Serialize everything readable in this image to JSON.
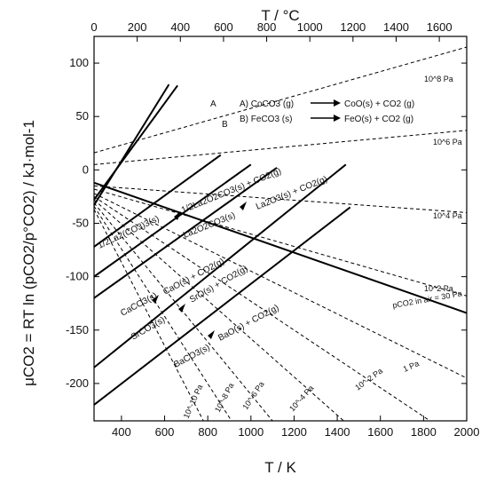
{
  "chart_data": {
    "type": "line",
    "xlabel": "T / K",
    "x2label": "T / °C",
    "ylabel": "μCO2 = RT ln (pCO2/p°CO2) / kJ·mol-1",
    "xlim": [
      273,
      2000
    ],
    "x2lim": [
      0,
      1727
    ],
    "ylim": [
      -235,
      125
    ],
    "xticks": [
      400,
      600,
      800,
      1000,
      1200,
      1400,
      1600,
      1800,
      2000
    ],
    "x2ticks": [
      0,
      200,
      400,
      600,
      800,
      1000,
      1200,
      1400,
      1600
    ],
    "yticks": [
      100,
      50,
      0,
      -50,
      -100,
      -150,
      -200
    ],
    "reactions": [
      {
        "name": "A",
        "label": "A",
        "x": [
          273,
          620
        ],
        "y": [
          -33,
          80
        ]
      },
      {
        "name": "B",
        "label": "B",
        "x": [
          273,
          660
        ],
        "y": [
          -28,
          79
        ]
      },
      {
        "name": "La2(CO3)3",
        "x": [
          273,
          860
        ],
        "y": [
          -72,
          14
        ]
      },
      {
        "name": "La2O2CO3",
        "x": [
          273,
          1000
        ],
        "y": [
          -100,
          5
        ]
      },
      {
        "name": "CaCO3",
        "x": [
          273,
          1120
        ],
        "y": [
          -120,
          2
        ]
      },
      {
        "name": "SrCO3",
        "x": [
          273,
          1440
        ],
        "y": [
          -185,
          5
        ]
      },
      {
        "name": "BaCO3",
        "x": [
          273,
          1460
        ],
        "y": [
          -220,
          -35
        ]
      }
    ],
    "isobars": [
      {
        "name": "10^8 Pa",
        "x": [
          273,
          2000
        ],
        "y": [
          16,
          115
        ]
      },
      {
        "name": "10^6 Pa",
        "x": [
          273,
          2000
        ],
        "y": [
          5,
          37
        ]
      },
      {
        "name": "10^4 Pa",
        "x": [
          273,
          2000
        ],
        "y": [
          -15,
          -40
        ]
      },
      {
        "name": "10^2 Pa",
        "x": [
          273,
          2000
        ],
        "y": [
          -18,
          -118
        ]
      },
      {
        "name": "1 Pa",
        "x": [
          273,
          2000
        ],
        "y": [
          -22,
          -195
        ]
      },
      {
        "name": "10^-2 Pa",
        "x": [
          273,
          1830
        ],
        "y": [
          -25,
          -235
        ]
      },
      {
        "name": "10^-4 Pa",
        "x": [
          273,
          1430
        ],
        "y": [
          -28,
          -235
        ]
      },
      {
        "name": "10^-6 Pa",
        "x": [
          273,
          1100
        ],
        "y": [
          -31,
          -235
        ]
      },
      {
        "name": "10^-8 Pa",
        "x": [
          273,
          910
        ],
        "y": [
          -34,
          -235
        ]
      },
      {
        "name": "10^-10 Pa",
        "x": [
          273,
          780
        ],
        "y": [
          -37,
          -235
        ]
      }
    ],
    "air_line": {
      "name": "pCO2 in air = 30 Pa",
      "x": [
        273,
        2000
      ],
      "y": [
        -12,
        -134
      ]
    },
    "annotations": {
      "A": "A",
      "B": "B",
      "rxnA": "A) CoCO3 (g)",
      "rxnA_prod": "CoO(s) + CO2 (g)",
      "rxnB": "B) FeCO3 (s)",
      "rxnB_prod": "FeO(s) + CO2 (g)",
      "la1_left": "1/2La2(CO3)3(s)",
      "la1_right": "1/2La2O2CO3(s) + CO2(g)",
      "la2_left": "La2O2CO3(s)",
      "la2_right": "La2O3(s) + CO2(g)",
      "ca_left": "CaCO3(s)",
      "ca_right": "CaO(s) + CO2(g)",
      "sr_left": "SrCO3(s)",
      "sr_right": "SrO(s) + CO2(g)",
      "ba_left": "BaCO3(s)",
      "ba_right": "BaO(s) + CO2(g)",
      "p1e8": "10^8 Pa",
      "p1e6": "10^6 Pa",
      "p1e4": "10^4 Pa",
      "p1e2": "10^2 Pa",
      "p1": "1 Pa",
      "p1em2": "10^-2 Pa",
      "p1em4": "10^-4 Pa",
      "p1em6": "10^-6 Pa",
      "p1em8": "10^-8 Pa",
      "p1em10": "10^-10 Pa",
      "air": "pCO2 in air = 30 Pa"
    }
  }
}
